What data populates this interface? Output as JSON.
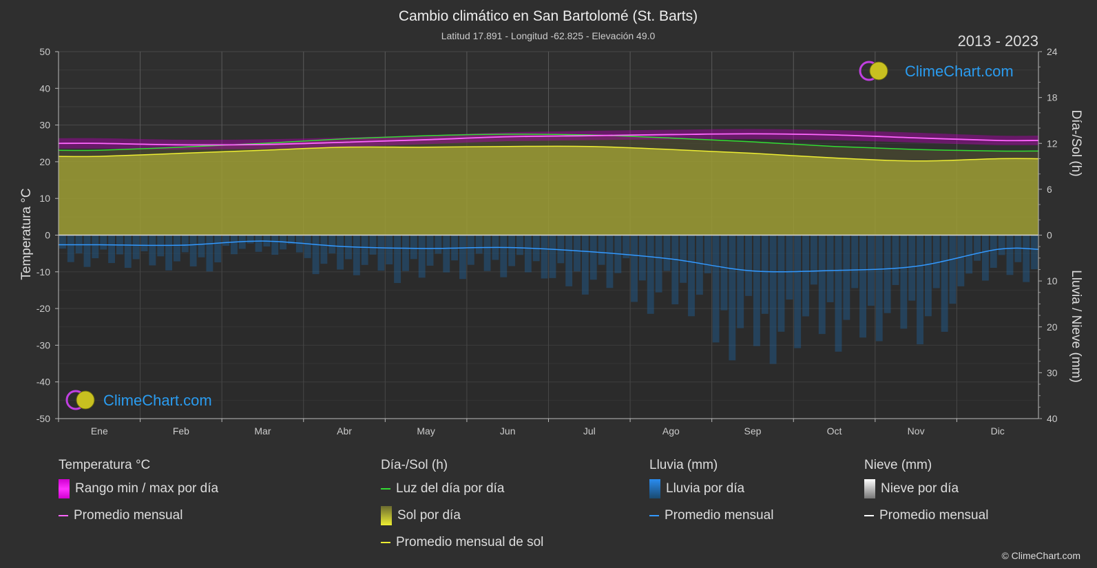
{
  "header": {
    "title": "Cambio climático en San Bartolomé (St. Barts)",
    "subtitle": "Latitud 17.891 - Longitud -62.825 - Elevación 49.0",
    "year_range": "2013 - 2023"
  },
  "axes": {
    "left_label": "Temperatura °C",
    "right_top_label": "Día-/Sol (h)",
    "right_bottom_label": "Lluvia / Nieve (mm)"
  },
  "brand": {
    "name": "ClimeChart.com",
    "copyright": "© ClimeChart.com"
  },
  "colors": {
    "background": "#2f2f2f",
    "temp_range": "#cc00cc",
    "temp_avg": "#ff66ff",
    "daylight": "#33dd33",
    "sun_fill": "#b3b33a",
    "sun_avg": "#eeee33",
    "rain": "#1f7fcc",
    "rain_avg": "#3399ff",
    "snow_avg": "#ffffff",
    "brand_text": "#2a9cf0"
  },
  "legend": {
    "temperature": {
      "title": "Temperatura °C",
      "range_label": "Rango min / max por día",
      "avg_label": "Promedio mensual"
    },
    "sun": {
      "title": "Día-/Sol (h)",
      "daylight_label": "Luz del día por día",
      "sun_label": "Sol por día",
      "sun_avg_label": "Promedio mensual de sol"
    },
    "rain": {
      "title": "Lluvia (mm)",
      "rain_label": "Lluvia por día",
      "avg_label": "Promedio mensual"
    },
    "snow": {
      "title": "Nieve (mm)",
      "snow_label": "Nieve por día",
      "avg_label": "Promedio mensual"
    }
  },
  "chart_data": {
    "type": "line",
    "title": "Cambio climático en San Bartolomé (St. Barts)",
    "subtitle": "Latitud 17.891 - Longitud -62.825 - Elevación 49.0",
    "categories": [
      "Ene",
      "Feb",
      "Mar",
      "Abr",
      "May",
      "Jun",
      "Jul",
      "Ago",
      "Sep",
      "Oct",
      "Nov",
      "Dic"
    ],
    "y_left": {
      "label": "Temperatura °C",
      "range": [
        -50,
        50
      ],
      "ticks": [
        50,
        40,
        30,
        20,
        10,
        0,
        -10,
        -20,
        -30,
        -40,
        -50
      ]
    },
    "y_right_top": {
      "label": "Día-/Sol (h)",
      "range": [
        0,
        24
      ],
      "ticks": [
        24,
        18,
        12,
        6,
        0
      ]
    },
    "y_right_bottom": {
      "label": "Lluvia / Nieve (mm)",
      "range": [
        0,
        40
      ],
      "ticks": [
        0,
        10,
        20,
        30,
        40
      ]
    },
    "grid": true,
    "series": [
      {
        "name": "Promedio mensual",
        "group": "temperatura",
        "unit": "°C",
        "values": [
          25.0,
          24.6,
          24.7,
          25.3,
          26.0,
          26.8,
          27.1,
          27.4,
          27.6,
          27.3,
          26.5,
          25.8
        ]
      },
      {
        "name": "Rango min / max por día",
        "group": "temperatura",
        "unit": "°C",
        "min": [
          23.6,
          23.3,
          23.5,
          24.0,
          24.8,
          25.6,
          25.9,
          26.1,
          26.2,
          25.9,
          25.2,
          24.5
        ],
        "max": [
          26.4,
          26.0,
          26.1,
          26.6,
          27.2,
          28.0,
          28.4,
          28.7,
          28.9,
          28.6,
          27.9,
          27.1
        ]
      },
      {
        "name": "Luz del día por día",
        "group": "sol",
        "unit": "h",
        "values": [
          11.1,
          11.5,
          12.0,
          12.6,
          13.0,
          13.2,
          13.1,
          12.7,
          12.2,
          11.6,
          11.2,
          11.0
        ]
      },
      {
        "name": "Promedio mensual de sol",
        "group": "sol",
        "unit": "h",
        "values": [
          10.3,
          10.7,
          11.1,
          11.5,
          11.5,
          11.6,
          11.6,
          11.2,
          10.7,
          10.1,
          9.7,
          10.0
        ]
      },
      {
        "name": "Promedio mensual",
        "group": "lluvia",
        "unit": "mm",
        "values": [
          2.1,
          2.2,
          1.3,
          2.5,
          2.9,
          2.7,
          3.6,
          5.2,
          7.8,
          7.7,
          6.8,
          3.1
        ]
      },
      {
        "name": "Promedio mensual",
        "group": "nieve",
        "unit": "mm",
        "values": [
          0,
          0,
          0,
          0,
          0,
          0,
          0,
          0,
          0,
          0,
          0,
          0
        ]
      }
    ]
  }
}
